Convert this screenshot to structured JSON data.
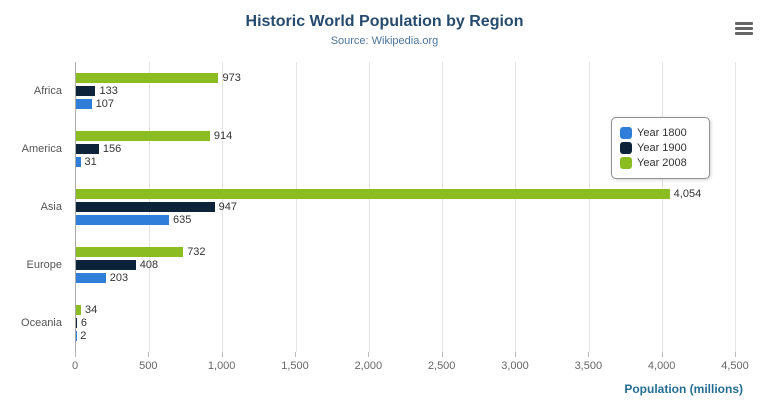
{
  "title": "Historic World Population by Region",
  "subtitle": "Source: Wikipedia.org",
  "menu": {
    "icon": "hamburger-icon"
  },
  "xaxis": {
    "title": "Population (millions)",
    "ticks": [
      "0",
      "500",
      "1,000",
      "1,500",
      "2,000",
      "2,500",
      "3,000",
      "3,500",
      "4,000",
      "4,500"
    ],
    "min": 0,
    "max": 4500
  },
  "legend": [
    {
      "label": "Year 1800",
      "color": "#2f7ed8"
    },
    {
      "label": "Year 1900",
      "color": "#0d233a"
    },
    {
      "label": "Year 2008",
      "color": "#8bbc21"
    }
  ],
  "chart_data": {
    "type": "bar",
    "orientation": "horizontal",
    "title": "Historic World Population by Region",
    "subtitle": "Source: Wikipedia.org",
    "categories": [
      "Africa",
      "America",
      "Asia",
      "Europe",
      "Oceania"
    ],
    "series": [
      {
        "name": "Year 1800",
        "color": "#2f7ed8",
        "values": [
          107,
          31,
          635,
          203,
          2
        ]
      },
      {
        "name": "Year 1900",
        "color": "#0d233a",
        "values": [
          133,
          156,
          947,
          408,
          6
        ]
      },
      {
        "name": "Year 2008",
        "color": "#8bbc21",
        "values": [
          973,
          914,
          4054,
          732,
          34
        ]
      }
    ],
    "xlabel": "Population (millions)",
    "ylabel": "",
    "xlim": [
      0,
      4500
    ],
    "grid": true,
    "legend_position": "right",
    "bar_order_top_to_bottom": [
      "Year 2008",
      "Year 1900",
      "Year 1800"
    ]
  }
}
